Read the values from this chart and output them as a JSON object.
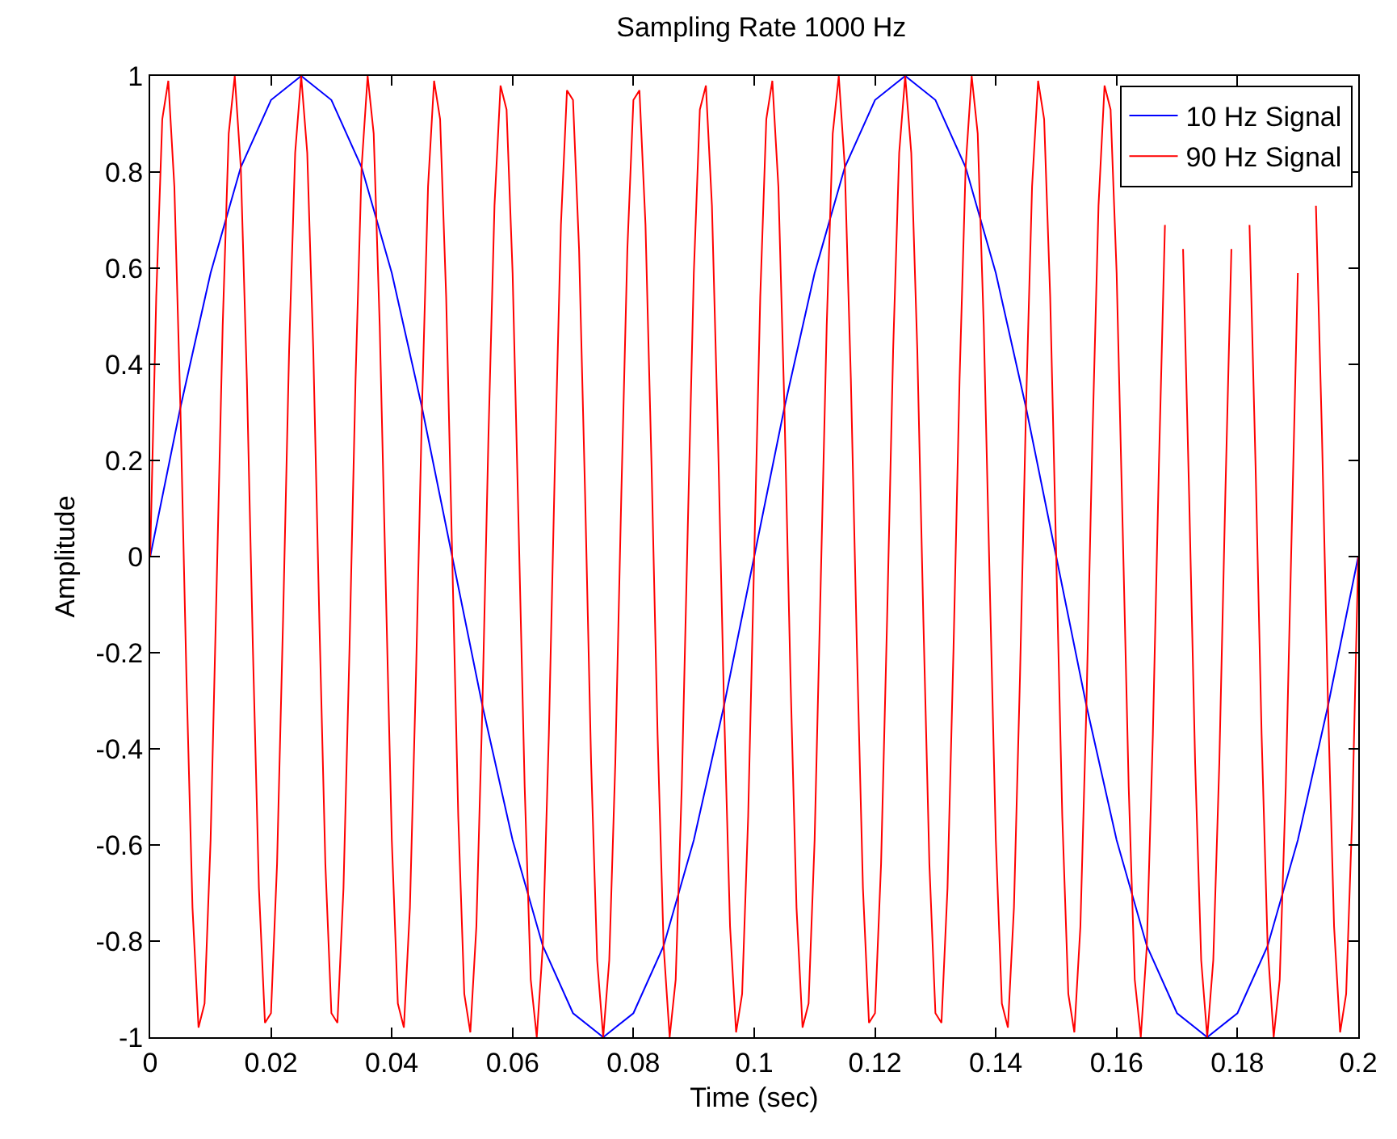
{
  "chart_data": {
    "type": "line",
    "title": "Sampling Rate 1000 Hz",
    "xlabel": "Time (sec)",
    "ylabel": "Amplitude",
    "xlim": [
      0,
      0.2
    ],
    "xticks": [
      0,
      0.02,
      0.04,
      0.06,
      0.08,
      0.1,
      0.12,
      0.14,
      0.16,
      0.18,
      0.2
    ],
    "ylim": [
      -1,
      1
    ],
    "yticks": [
      -1,
      -0.8,
      -0.6,
      -0.4,
      -0.2,
      0,
      0.2,
      0.4,
      0.6,
      0.8,
      1
    ],
    "grid": false,
    "legend": "top right",
    "marker": "none",
    "line_style": "solid",
    "series": [
      {
        "name": "10 Hz Signal",
        "color": "#0000ff",
        "x": [
          0,
          0.005,
          0.01,
          0.015,
          0.02,
          0.025,
          0.03,
          0.035,
          0.04,
          0.045,
          0.05,
          0.055,
          0.06,
          0.065,
          0.07,
          0.075,
          0.08,
          0.085,
          0.09,
          0.095,
          0.1,
          0.105,
          0.11,
          0.115,
          0.12,
          0.125,
          0.13,
          0.135,
          0.14,
          0.145,
          0.15,
          0.155,
          0.16,
          0.165,
          0.17,
          0.175,
          0.18,
          0.185,
          0.19,
          0.195,
          0.2
        ],
        "values": [
          0,
          0.31,
          0.59,
          0.81,
          0.95,
          1,
          0.95,
          0.81,
          0.59,
          0.31,
          0,
          -0.31,
          -0.59,
          -0.81,
          -0.95,
          -1,
          -0.95,
          -0.81,
          -0.59,
          -0.31,
          0,
          0.31,
          0.59,
          0.81,
          0.95,
          1,
          0.95,
          0.81,
          0.59,
          0.31,
          0,
          -0.31,
          -0.59,
          -0.81,
          -0.95,
          -1,
          -0.95,
          -0.81,
          -0.59,
          -0.31,
          0
        ]
      },
      {
        "name": "90 Hz Signal",
        "color": "#ff0000",
        "x": [
          0,
          0.001,
          0.002,
          0.003,
          0.004,
          0.005,
          0.006,
          0.007,
          0.008,
          0.009,
          0.01,
          0.011,
          0.012,
          0.013,
          0.014,
          0.015,
          0.016,
          0.017,
          0.018,
          0.019,
          0.02,
          0.021,
          0.022,
          0.023,
          0.024,
          0.025,
          0.026,
          0.027,
          0.028,
          0.029,
          0.03,
          0.031,
          0.032,
          0.033,
          0.034,
          0.035,
          0.036,
          0.037,
          0.038,
          0.039,
          0.04,
          0.041,
          0.042,
          0.043,
          0.044,
          0.045,
          0.046,
          0.047,
          0.048,
          0.049,
          0.05,
          0.051,
          0.052,
          0.053,
          0.054,
          0.055,
          0.056,
          0.057,
          0.058,
          0.059,
          0.06,
          0.061,
          0.062,
          0.063,
          0.064,
          0.065,
          0.066,
          0.067,
          0.068,
          0.069,
          0.07,
          0.071,
          0.072,
          0.073,
          0.074,
          0.075,
          0.076,
          0.077,
          0.078,
          0.079,
          0.08,
          0.081,
          0.082,
          0.083,
          0.084,
          0.085,
          0.086,
          0.087,
          0.088,
          0.089,
          0.09,
          0.091,
          0.092,
          0.093,
          0.094,
          0.095,
          0.096,
          0.097,
          0.098,
          0.099,
          0.1,
          0.101,
          0.102,
          0.103,
          0.104,
          0.105,
          0.106,
          0.107,
          0.108,
          0.109,
          0.11,
          0.111,
          0.112,
          0.113,
          0.114,
          0.115,
          0.116,
          0.117,
          0.118,
          0.119,
          0.12,
          0.121,
          0.122,
          0.123,
          0.124,
          0.125,
          0.126,
          0.127,
          0.128,
          0.129,
          0.13,
          0.131,
          0.132,
          0.133,
          0.134,
          0.135,
          0.136,
          0.137,
          0.138,
          0.139,
          0.14,
          0.141,
          0.142,
          0.143,
          0.144,
          0.145,
          0.146,
          0.147,
          0.148,
          0.149,
          0.15,
          0.151,
          0.152,
          0.153,
          0.154,
          0.155,
          0.156,
          0.157,
          0.158,
          0.159,
          0.16,
          0.161,
          0.162,
          0.163,
          0.164,
          0.165,
          0.166,
          0.167,
          0.168,
          0.169,
          0.17,
          0.171,
          0.172,
          0.173,
          0.174,
          0.175,
          0.176,
          0.177,
          0.178,
          0.179,
          0.18,
          0.181,
          0.182,
          0.183,
          0.184,
          0.185,
          0.186,
          0.187,
          0.188,
          0.189,
          0.19,
          0.191,
          0.192,
          0.193,
          0.194,
          0.195,
          0.196,
          0.197,
          0.198,
          0.199,
          0.2
        ],
        "values": [
          0,
          0.54,
          0.91,
          0.99,
          0.77,
          0.31,
          -0.25,
          -0.73,
          -0.98,
          -0.93,
          -0.59,
          -0.06,
          0.48,
          0.88,
          1,
          0.81,
          0.37,
          -0.19,
          -0.69,
          -0.97,
          -0.95,
          -0.64,
          -0.13,
          0.43,
          0.84,
          1,
          0.84,
          0.43,
          -0.13,
          -0.64,
          -0.95,
          -0.97,
          -0.69,
          -0.19,
          0.37,
          0.81,
          1,
          0.88,
          0.48,
          -0.06,
          -0.59,
          -0.93,
          -0.98,
          -0.73,
          -0.25,
          0.31,
          0.77,
          0.99,
          0.91,
          0.54,
          0,
          -0.54,
          -0.91,
          -0.99,
          -0.77,
          -0.31,
          0.25,
          0.73,
          0.98,
          0.93,
          0.59,
          0.06,
          -0.48,
          -0.88,
          -1,
          -0.81,
          -0.37,
          0.19,
          0.69,
          0.97,
          0.95,
          0.64,
          0.13,
          -0.43,
          -0.84,
          -1,
          -0.84,
          -0.43,
          0.13,
          0.64,
          0.95,
          0.97,
          0.69,
          0.19,
          -0.37,
          -0.81,
          -1,
          -0.88,
          -0.48,
          0.06,
          0.59,
          0.93,
          0.98,
          0.73,
          0.25,
          -0.31,
          -0.77,
          -0.99,
          -0.91,
          -0.54,
          0,
          0.54,
          0.91,
          0.99,
          0.77,
          0.31,
          -0.25,
          -0.73,
          -0.98,
          -0.93,
          -0.59,
          -0.06,
          0.48,
          0.88,
          1,
          0.81,
          0.37,
          -0.19,
          -0.69,
          -0.97,
          -0.95,
          -0.64,
          -0.13,
          0.43,
          0.84,
          1,
          0.84,
          0.43,
          -0.13,
          -0.64,
          -0.95,
          -0.97,
          -0.69,
          -0.19,
          0.37,
          0.81,
          1,
          0.88,
          0.48,
          -0.06,
          -0.59,
          -0.93,
          -0.98,
          -0.73,
          -0.25,
          0.31,
          0.77,
          0.99,
          0.91,
          0.54,
          0,
          -0.54,
          -0.91,
          -0.99,
          -0.77,
          -0.31,
          0.25,
          0.73,
          0.98,
          0.93,
          0.59,
          0.06,
          -0.48,
          -0.88,
          -1,
          -0.81,
          -0.37,
          0.19,
          0.69,
          null,
          null,
          0.64,
          0.13,
          -0.43,
          -0.84,
          -1,
          -0.84,
          -0.43,
          0.13,
          0.64,
          null,
          null,
          0.69,
          0.19,
          -0.37,
          -0.81,
          -1,
          -0.88,
          -0.48,
          0.06,
          0.59,
          null,
          null,
          0.73,
          0.25,
          -0.31,
          -0.77,
          -0.99,
          -0.91,
          -0.54,
          0
        ]
      }
    ]
  }
}
